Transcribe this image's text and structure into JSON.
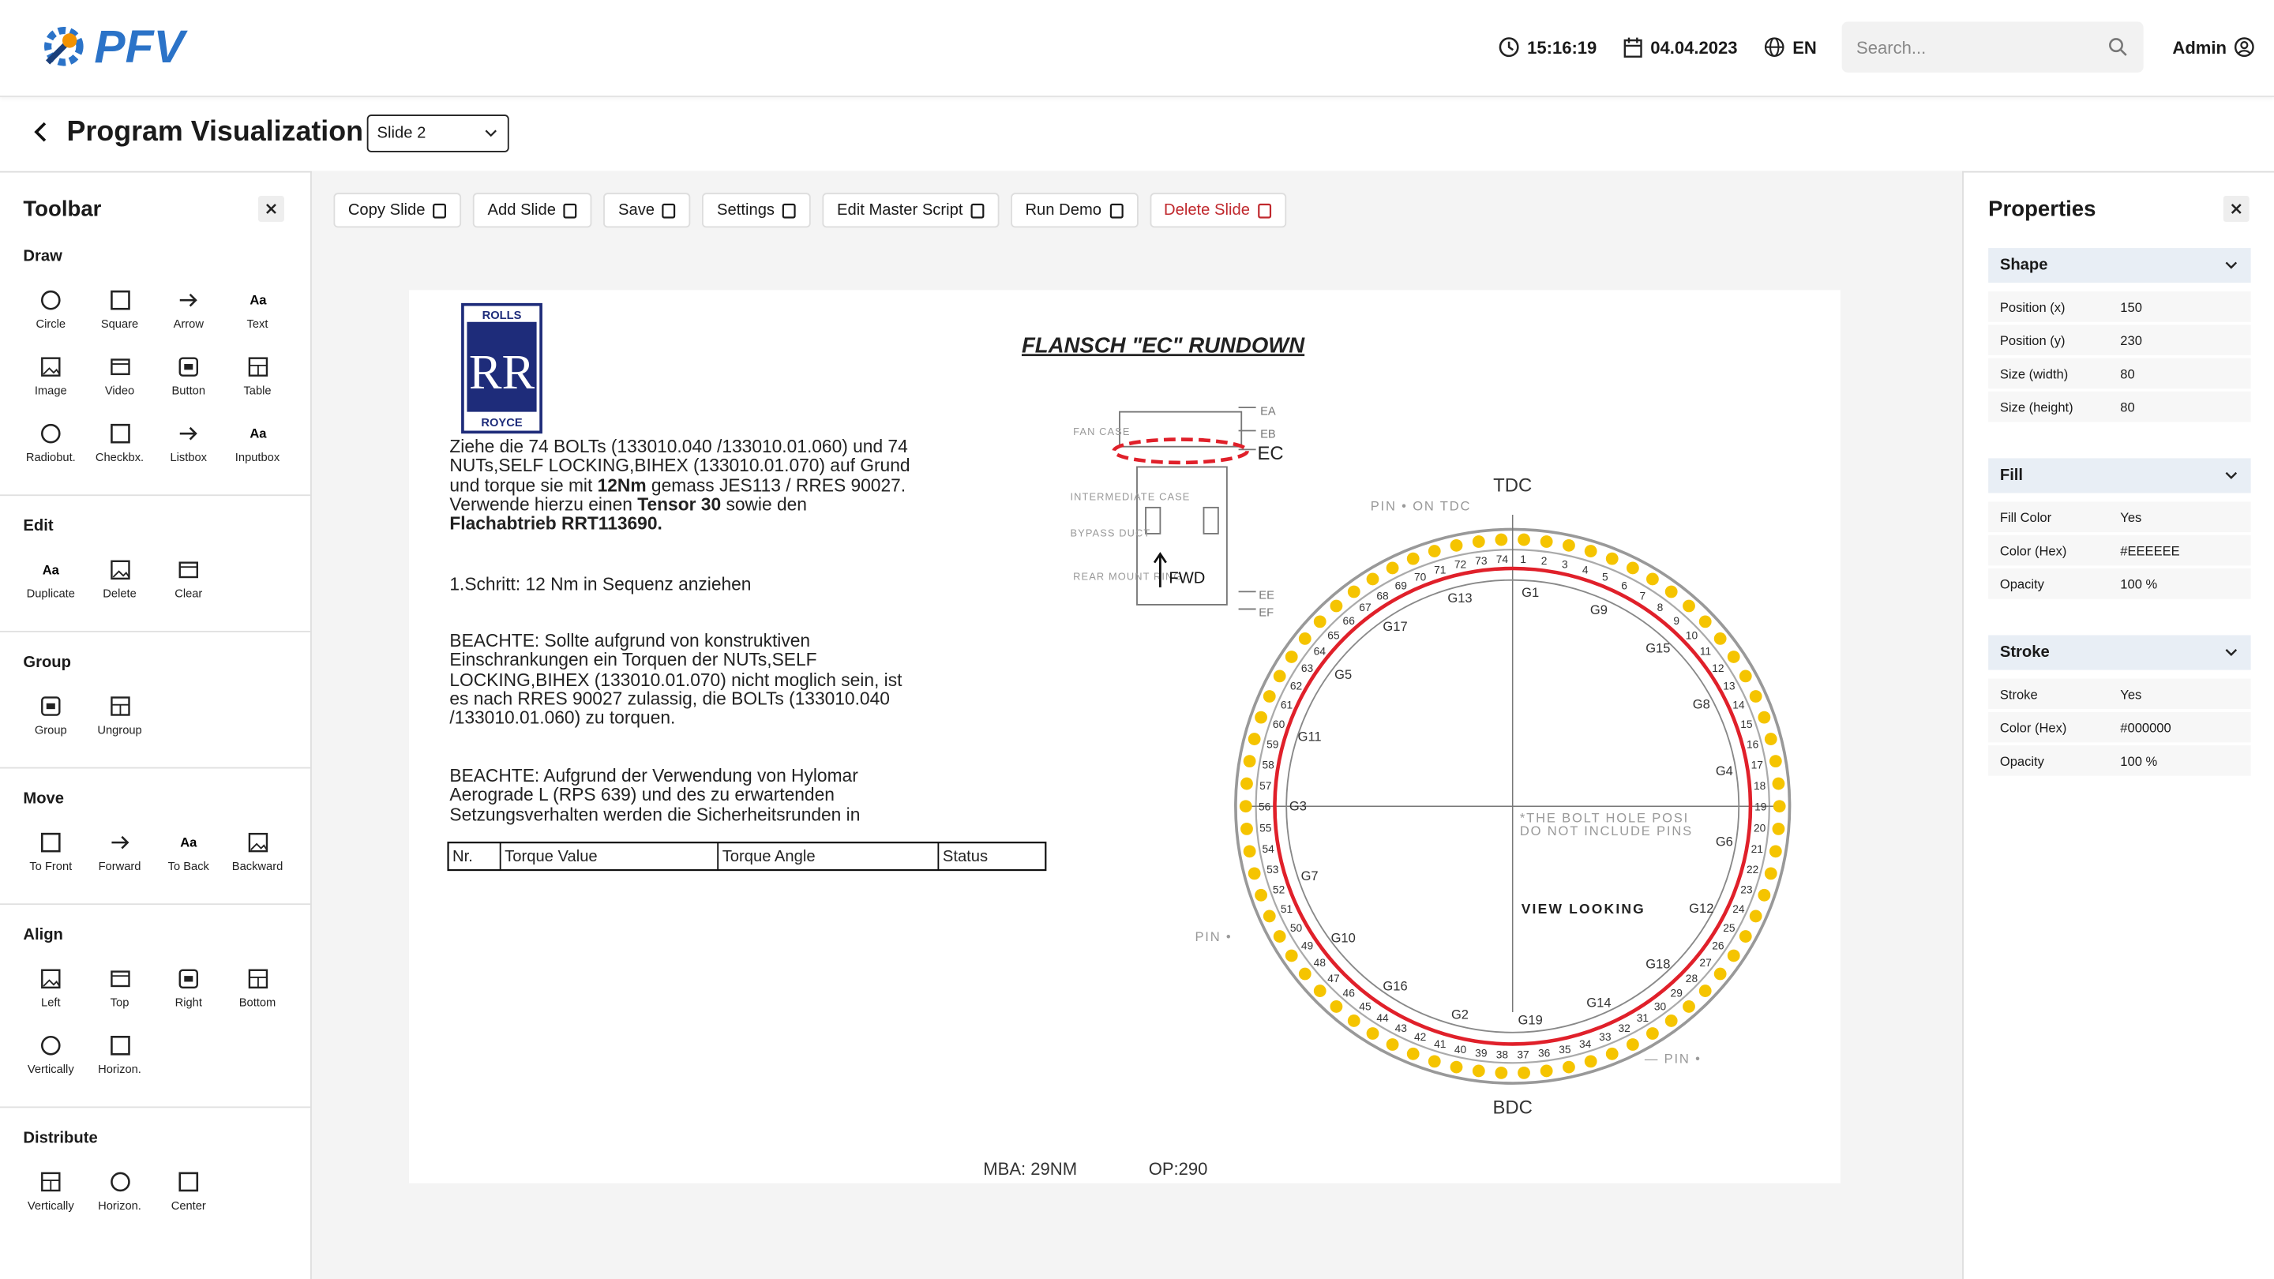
{
  "header": {
    "logo": "PFV",
    "time": "15:16:19",
    "date": "04.04.2023",
    "language": "EN",
    "search_placeholder": "Search...",
    "user": "Admin"
  },
  "page": {
    "title": "Program Visualization",
    "slide_select": "Slide 2"
  },
  "toolbar": {
    "title": "Toolbar",
    "sections": [
      {
        "title": "Draw",
        "items": [
          "Circle",
          "Square",
          "Arrow",
          "Text",
          "Image",
          "Video",
          "Button",
          "Table",
          "Radiobut.",
          "Checkbx.",
          "Listbox",
          "Inputbox"
        ]
      },
      {
        "title": "Edit",
        "items": [
          "Duplicate",
          "Delete",
          "Clear"
        ]
      },
      {
        "title": "Group",
        "items": [
          "Group",
          "Ungroup"
        ]
      },
      {
        "title": "Move",
        "items": [
          "To Front",
          "Forward",
          "To Back",
          "Backward"
        ]
      },
      {
        "title": "Align",
        "items": [
          "Left",
          "Top",
          "Right",
          "Bottom",
          "Vertically",
          "Horizon."
        ]
      },
      {
        "title": "Distribute",
        "items": [
          "Vertically",
          "Horizon.",
          "Center"
        ]
      }
    ]
  },
  "actions": [
    "Copy Slide",
    "Add Slide",
    "Save",
    "Settings",
    "Edit Master Script",
    "Run Demo",
    "Delete Slide"
  ],
  "slide": {
    "logo": {
      "top": "ROLLS",
      "monogram": "RR",
      "bottom": "ROYCE"
    },
    "title": "FLANSCH \"EC\" RUNDOWN",
    "paragraphs": [
      [
        {
          "text": "Ziehe die 74 BOLTs (133010.040 /133010.01.060) und 74 NUTs,SELF LOCKING,BIHEX (133010.01.070) auf Grund und torque sie mit ",
          "bold": false
        },
        {
          "text": "12Nm",
          "bold": true
        },
        {
          "text": " gemass JES113 / RRES 90027. Verwende hierzu einen ",
          "bold": false
        },
        {
          "text": "Tensor 30",
          "bold": true
        },
        {
          "text": " sowie den ",
          "bold": false
        },
        {
          "text": "Flachabtrieb RRT113690.",
          "bold": true
        }
      ],
      [
        {
          "text": "1.Schritt: 12 Nm in Sequenz anziehen",
          "bold": false
        }
      ],
      [
        {
          "text": "BEACHTE: Sollte aufgrund von konstruktiven Einschrankungen ein Torquen der NUTs,SELF LOCKING,BIHEX (133010.01.070) nicht moglich sein, ist es nach RRES 90027 zulassig, die BOLTs (133010.040 /133010.01.060) zu torquen.",
          "bold": false
        }
      ],
      [
        {
          "text": "BEACHTE: Aufgrund der Verwendung von Hylomar Aerograde L (RPS 639) und des zu erwartenden Setzungsverhalten werden die Sicherheitsrunden in",
          "bold": false
        }
      ]
    ],
    "table_headers": [
      "Nr.",
      "Torque Value",
      "Torque Angle",
      "Status"
    ],
    "footer": [
      "MBA: 29NM",
      "OP:290"
    ],
    "diagram": {
      "engine_labels": [
        "FAN CASE",
        "INTERMEDIATE CASE",
        "BYPASS DUCT",
        "REAR MOUNT RING"
      ],
      "flange_labels": [
        "EA",
        "EB",
        "EC",
        "EE",
        "EF"
      ],
      "fwd": "FWD",
      "tdc": "TDC",
      "bdc": "BDC",
      "pins": [
        "PIN • ON TDC",
        "PIN •",
        "— PIN •"
      ],
      "note": [
        "*THE BOLT HOLE POSI",
        "DO NOT INCLUDE PINS"
      ],
      "view": "VIEW LOOKING",
      "groups": [
        "G1",
        "G9",
        "G15",
        "G8",
        "G4",
        "G6",
        "G12",
        "G18",
        "G14",
        "G19",
        "G2",
        "G16",
        "G10",
        "G7",
        "G3",
        "G11",
        "G5",
        "G17",
        "G13"
      ],
      "bolts": [
        "1",
        "2",
        "3",
        "4",
        "5",
        "6",
        "7",
        "8",
        "9",
        "10",
        "11",
        "12",
        "13",
        "14",
        "15",
        "16",
        "17",
        "18",
        "19",
        "20",
        "21",
        "22",
        "23",
        "24",
        "25",
        "26",
        "27",
        "28",
        "29",
        "30",
        "31",
        "32",
        "33",
        "34",
        "35",
        "36",
        "37",
        "38",
        "39",
        "40",
        "41",
        "42",
        "43",
        "44",
        "45",
        "46",
        "47",
        "48",
        "49",
        "50",
        "51",
        "52",
        "53",
        "54",
        "55",
        "56",
        "57",
        "58",
        "59",
        "60",
        "61",
        "62",
        "63",
        "64",
        "65",
        "66",
        "67",
        "68",
        "69",
        "70",
        "71",
        "72",
        "73",
        "74"
      ]
    }
  },
  "properties": {
    "title": "Properties",
    "groups": [
      {
        "title": "Shape",
        "rows": [
          [
            "Position (x)",
            "150"
          ],
          [
            "Position (y)",
            "230"
          ],
          [
            "Size (width)",
            "80"
          ],
          [
            "Size (height)",
            "80"
          ]
        ]
      },
      {
        "title": "Fill",
        "rows": [
          [
            "Fill Color",
            "Yes"
          ],
          [
            "Color (Hex)",
            "#EEEEEE"
          ],
          [
            "Opacity",
            "100 %"
          ]
        ]
      },
      {
        "title": "Stroke",
        "rows": [
          [
            "Stroke",
            "Yes"
          ],
          [
            "Color (Hex)",
            "#000000"
          ],
          [
            "Opacity",
            "100 %"
          ]
        ]
      }
    ]
  }
}
